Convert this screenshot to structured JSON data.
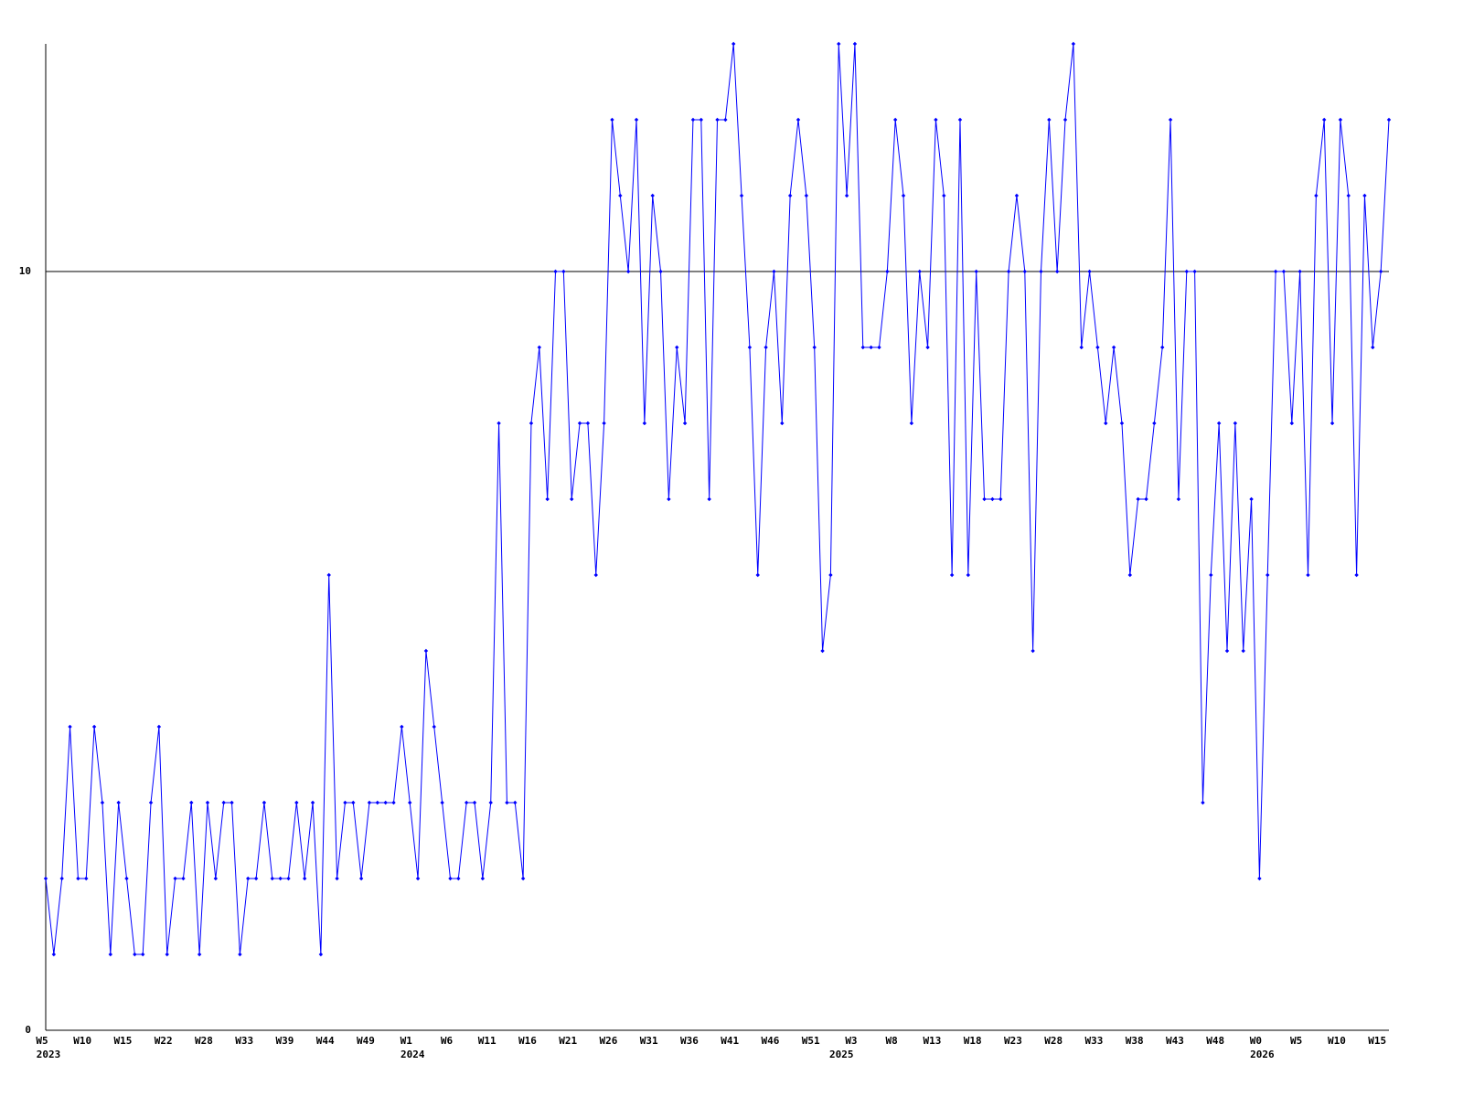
{
  "chart_data": {
    "type": "line",
    "categories": [
      "W5",
      null,
      null,
      null,
      null,
      "W10",
      null,
      null,
      null,
      null,
      "W15",
      null,
      null,
      null,
      null,
      "W22",
      null,
      null,
      null,
      null,
      "W28",
      null,
      null,
      null,
      null,
      "W33",
      null,
      null,
      null,
      null,
      "W39",
      null,
      null,
      null,
      null,
      "W44",
      null,
      null,
      null,
      null,
      "W49",
      null,
      null,
      null,
      null,
      "W1",
      null,
      null,
      null,
      null,
      "W6",
      null,
      null,
      null,
      null,
      "W11",
      null,
      null,
      null,
      null,
      "W16",
      null,
      null,
      null,
      null,
      "W21",
      null,
      null,
      null,
      null,
      "W26",
      null,
      null,
      null,
      null,
      "W31",
      null,
      null,
      null,
      null,
      "W36",
      null,
      null,
      null,
      null,
      "W41",
      null,
      null,
      null,
      null,
      "W46",
      null,
      null,
      null,
      null,
      "W51",
      null,
      null,
      null,
      null,
      "W3",
      null,
      null,
      null,
      null,
      "W8",
      null,
      null,
      null,
      null,
      "W13",
      null,
      null,
      null,
      null,
      "W18",
      null,
      null,
      null,
      null,
      "W23",
      null,
      null,
      null,
      null,
      "W28",
      null,
      null,
      null,
      null,
      "W33",
      null,
      null,
      null,
      null,
      "W38",
      null,
      null,
      null,
      null,
      "W43",
      null,
      null,
      null,
      null,
      "W48",
      null,
      null,
      null,
      null,
      "W0",
      null,
      null,
      null,
      null,
      "W5",
      null,
      null,
      null,
      null,
      "W10",
      null,
      null,
      null,
      null,
      "W15",
      null
    ],
    "year_labels": [
      "2023",
      null,
      null,
      null,
      null,
      null,
      null,
      null,
      null,
      null,
      null,
      null,
      null,
      null,
      null,
      null,
      null,
      null,
      null,
      null,
      null,
      null,
      null,
      null,
      null,
      null,
      null,
      null,
      null,
      null,
      null,
      null,
      null,
      null,
      null,
      null,
      null,
      null,
      null,
      null,
      null,
      null,
      null,
      null,
      null,
      "2024",
      null,
      null,
      null,
      null,
      null,
      null,
      null,
      null,
      null,
      null,
      null,
      null,
      null,
      null,
      null,
      null,
      null,
      null,
      null,
      null,
      null,
      null,
      null,
      null,
      null,
      null,
      null,
      null,
      null,
      null,
      null,
      null,
      null,
      null,
      null,
      null,
      null,
      null,
      null,
      null,
      null,
      null,
      null,
      null,
      null,
      null,
      null,
      null,
      null,
      null,
      null,
      null,
      "2025",
      null,
      null,
      null,
      null,
      null,
      null,
      null,
      null,
      null,
      null,
      null,
      null,
      null,
      null,
      null,
      null,
      null,
      null,
      null,
      null,
      null,
      null,
      null,
      null,
      null,
      null,
      null,
      null,
      null,
      null,
      null,
      null,
      null,
      null,
      null,
      null,
      null,
      null,
      null,
      null,
      null,
      null,
      null,
      null,
      null,
      null,
      null,
      null,
      null,
      null,
      null,
      "2026",
      null,
      null,
      null,
      null,
      null,
      null,
      null,
      null,
      null,
      null,
      null,
      null,
      null,
      null,
      null,
      null
    ],
    "series": [
      {
        "color": "#0000ff",
        "values": [
          2,
          1,
          2,
          4,
          2,
          2,
          4,
          3,
          1,
          3,
          2,
          1,
          1,
          3,
          4,
          1,
          2,
          2,
          3,
          1,
          3,
          2,
          3,
          3,
          1,
          2,
          2,
          3,
          2,
          2,
          2,
          3,
          2,
          3,
          1,
          6,
          2,
          3,
          3,
          2,
          3,
          3,
          3,
          3,
          4,
          3,
          2,
          5,
          4,
          3,
          2,
          2,
          3,
          3,
          2,
          3,
          8,
          3,
          3,
          2,
          8,
          9,
          7,
          10,
          10,
          7,
          8,
          8,
          6,
          8,
          12,
          11,
          10,
          12,
          8,
          11,
          10,
          7,
          9,
          8,
          12,
          12,
          7,
          12,
          12,
          13,
          11,
          9,
          6,
          9,
          10,
          8,
          11,
          12,
          11,
          9,
          5,
          6,
          13,
          11,
          13,
          9,
          9,
          9,
          10,
          12,
          11,
          8,
          10,
          9,
          12,
          11,
          6,
          12,
          6,
          10,
          7,
          7,
          7,
          10,
          11,
          10,
          5,
          10,
          12,
          10,
          12,
          13,
          9,
          10,
          9,
          8,
          9,
          8,
          6,
          7,
          7,
          8,
          9,
          12,
          7,
          10,
          10,
          3,
          6,
          8,
          5,
          8,
          5,
          7,
          2,
          6,
          10,
          10,
          8,
          10,
          6,
          11,
          12,
          8,
          12,
          11,
          6,
          11,
          9,
          10,
          12
        ]
      }
    ],
    "ylim": [
      0,
      13
    ],
    "yticks": [
      0,
      10
    ],
    "grid": true
  }
}
